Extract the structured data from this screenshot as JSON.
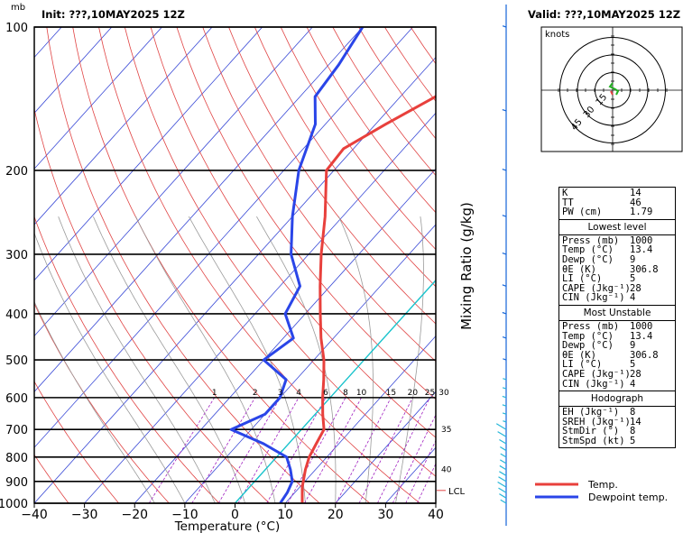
{
  "header": {
    "pressure_unit": "mb",
    "init_label": "Init: ???,10MAY2025  12Z",
    "valid_label": "Valid: ???,10MAY2025  12Z"
  },
  "chart_data": {
    "type": "line",
    "xlabel": "Temperature (°C)",
    "ylabel_right": "Mixing Ratio (g/kg)",
    "xlim": [
      -40,
      40
    ],
    "ylim_pressure": [
      1000,
      100
    ],
    "y_scale": "log",
    "x_ticks": [
      -40,
      -30,
      -20,
      -10,
      0,
      10,
      20,
      30,
      40
    ],
    "x_tick_labels": [
      "−40",
      "−30",
      "−20",
      "−10",
      "0",
      "10",
      "20",
      "30",
      "40"
    ],
    "pressure_ticks": [
      100,
      200,
      300,
      400,
      500,
      600,
      700,
      800,
      900,
      1000
    ],
    "mixing_ratio_labels": [
      "1",
      "2",
      "3",
      "4",
      "6",
      "8",
      "10",
      "15",
      "20",
      "25",
      "30"
    ],
    "mixing_ratio_side_labels": [
      "35",
      "40"
    ],
    "lcl_label": "LCL",
    "lcl_pressure": 940,
    "series": [
      {
        "name": "Temp.",
        "color": "#e8403c",
        "points": [
          [
            1000,
            13.4
          ],
          [
            925,
            10.5
          ],
          [
            850,
            8
          ],
          [
            800,
            6.5
          ],
          [
            750,
            5.5
          ],
          [
            700,
            4.5
          ],
          [
            650,
            1.5
          ],
          [
            600,
            -1.5
          ],
          [
            550,
            -4.5
          ],
          [
            500,
            -8
          ],
          [
            450,
            -12.5
          ],
          [
            400,
            -17
          ],
          [
            350,
            -22
          ],
          [
            300,
            -27.5
          ],
          [
            250,
            -33.5
          ],
          [
            200,
            -41.5
          ],
          [
            180,
            -42
          ],
          [
            160,
            -38
          ],
          [
            140,
            -33
          ],
          [
            120,
            -30
          ],
          [
            100,
            -28
          ]
        ]
      },
      {
        "name": "Dewpoint temp.",
        "color": "#2a45e8",
        "points": [
          [
            1000,
            9
          ],
          [
            950,
            8.5
          ],
          [
            900,
            7.5
          ],
          [
            850,
            5
          ],
          [
            800,
            2
          ],
          [
            750,
            -5
          ],
          [
            700,
            -14
          ],
          [
            650,
            -10
          ],
          [
            600,
            -10
          ],
          [
            550,
            -12
          ],
          [
            500,
            -20
          ],
          [
            450,
            -18
          ],
          [
            400,
            -24
          ],
          [
            350,
            -26
          ],
          [
            300,
            -33.5
          ],
          [
            250,
            -40
          ],
          [
            200,
            -47
          ],
          [
            160,
            -52
          ],
          [
            140,
            -57
          ],
          [
            120,
            -58
          ],
          [
            100,
            -60
          ]
        ]
      }
    ],
    "legend": {
      "placement": "bottom-right"
    }
  },
  "hodograph": {
    "units_label": "knots",
    "ring_labels": [
      "15",
      "30",
      "45"
    ],
    "ring_values": [
      15,
      30,
      45
    ]
  },
  "wind_barbs": {
    "levels": [
      1000,
      975,
      950,
      925,
      900,
      875,
      850,
      825,
      800,
      775,
      750,
      725,
      700,
      675,
      650,
      625,
      600,
      575,
      550,
      500,
      450,
      400,
      350,
      300,
      250,
      200,
      150,
      100
    ],
    "speeds_kt": [
      5,
      8,
      10,
      12,
      10,
      8,
      7,
      6,
      5,
      6,
      8,
      12,
      15,
      18,
      20,
      22,
      22,
      20,
      18,
      18,
      20,
      22,
      25,
      28,
      30,
      28,
      25,
      20
    ]
  },
  "index_panel": {
    "top": [
      {
        "k": "K",
        "v": "14"
      },
      {
        "k": "TT",
        "v": "46"
      },
      {
        "k": "PW (cm)",
        "v": "1.79"
      }
    ],
    "lowest": {
      "title": "Lowest level",
      "rows": [
        {
          "k": "Press (mb)",
          "v": "1000"
        },
        {
          "k": "Temp (°C)",
          "v": "13.4"
        },
        {
          "k": "Dewp (°C)",
          "v": "9"
        },
        {
          "k": "θE (K)",
          "v": "306.8"
        },
        {
          "k": "LI (°C)",
          "v": "5"
        },
        {
          "k": "CAPE (Jkg⁻¹)",
          "v": "28"
        },
        {
          "k": "CIN (Jkg⁻¹)",
          "v": "4"
        }
      ]
    },
    "unstable": {
      "title": "Most Unstable",
      "rows": [
        {
          "k": "Press (mb)",
          "v": "1000"
        },
        {
          "k": "Temp (°C)",
          "v": "13.4"
        },
        {
          "k": "Dewp (°C)",
          "v": "9"
        },
        {
          "k": "θE (K)",
          "v": "306.8"
        },
        {
          "k": "LI (°C)",
          "v": "5"
        },
        {
          "k": "CAPE (Jkg⁻¹)",
          "v": "28"
        },
        {
          "k": "CIN (Jkg⁻¹)",
          "v": "4"
        }
      ]
    },
    "hodo": {
      "title": "Hodograph",
      "rows": [
        {
          "k": "EH (Jkg⁻¹)",
          "v": "8"
        },
        {
          "k": "SREH (Jkg⁻¹)",
          "v": "14"
        },
        {
          "k": "StmDir (°)",
          "v": "8"
        },
        {
          "k": "StmSpd (kt)",
          "v": "5"
        }
      ]
    }
  },
  "legend_labels": {
    "temp": "Temp.",
    "dewp": "Dewpoint temp."
  },
  "legend_colors": {
    "temp": "#e8403c",
    "dewp": "#2a45e8"
  }
}
